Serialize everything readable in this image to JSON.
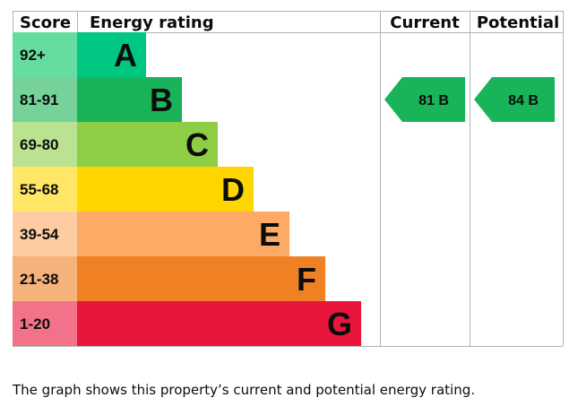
{
  "chart_data": {
    "type": "bar",
    "headers": {
      "score": "Score",
      "rating": "Energy rating",
      "current": "Current",
      "potential": "Potential"
    },
    "bands": [
      {
        "letter": "A",
        "range": "92+",
        "min": 92,
        "max": 100,
        "color": "#00c781",
        "score_bg": "#66dda0"
      },
      {
        "letter": "B",
        "range": "81-91",
        "min": 81,
        "max": 91,
        "color": "#19b459",
        "score_bg": "#75d29b"
      },
      {
        "letter": "C",
        "range": "69-80",
        "min": 69,
        "max": 80,
        "color": "#8dce46",
        "score_bg": "#bbe290"
      },
      {
        "letter": "D",
        "range": "55-68",
        "min": 55,
        "max": 68,
        "color": "#ffd500",
        "score_bg": "#ffe666"
      },
      {
        "letter": "E",
        "range": "39-54",
        "min": 39,
        "max": 54,
        "color": "#fcaa65",
        "score_bg": "#fdcca3"
      },
      {
        "letter": "F",
        "range": "21-38",
        "min": 21,
        "max": 38,
        "color": "#ef8023",
        "score_bg": "#f5b37b"
      },
      {
        "letter": "G",
        "range": "1-20",
        "min": 1,
        "max": 20,
        "color": "#e9153b",
        "score_bg": "#f27389"
      }
    ],
    "current": {
      "value": 81,
      "band": "B",
      "label": "81 B"
    },
    "potential": {
      "value": 84,
      "band": "B",
      "label": "84 B"
    }
  },
  "caption": "The graph shows this property’s current and potential energy rating.",
  "colors": {
    "grid": "#b1b4b6",
    "text": "#0b0c0c",
    "arrow": "#19b459"
  }
}
